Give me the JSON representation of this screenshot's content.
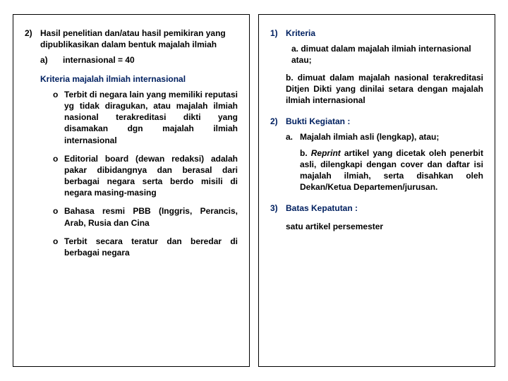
{
  "left": {
    "num": "2)",
    "title": "Hasil penelitian dan/atau hasil pemikiran yang dipublikasikan dalam bentuk majalah ilmiah",
    "sub_a_lbl": "a)",
    "sub_a_text": "internasional = 40",
    "kriteria_hd": "Kriteria majalah ilmiah internasional",
    "bul1": "Terbit di negara lain yang memiliki reputasi yg tidak diragukan, atau majalah ilmiah nasional terakreditasi dikti yang disamakan dgn majalah ilmiah internasional",
    "bul2": "Editorial board (dewan redaksi) adalah pakar dibidangnya dan berasal dari berbagai negara serta berdo misili di negara masing-masing",
    "bul3": "Bahasa resmi PBB (Inggris, Perancis, Arab, Rusia dan Cina",
    "bul4": "Terbit secara teratur dan beredar di berbagai negara",
    "circ": "o"
  },
  "right": {
    "s1_num": "1)",
    "s1_title": "Kriteria",
    "s1_a": "a. dimuat dalam majalah ilmiah internasional atau;",
    "s1_b": "b. dimuat dalam majalah nasional terakreditasi Ditjen Dikti yang dinilai setara dengan majalah ilmiah internasional",
    "s2_num": "2)",
    "s2_title": "Bukti Kegiatan :",
    "s2_a_lbl": "a.",
    "s2_a_text": "Majalah ilmiah asli (lengkap), atau;",
    "s2_b_pre": "b. ",
    "s2_b_it": "Reprint",
    "s2_b_post": " artikel yang dicetak oleh penerbit asli, dilengkapi dengan cover dan daftar isi majalah ilmiah, serta disahkan oleh Dekan/Ketua Departemen/jurusan.",
    "s3_num": "3)",
    "s3_title": "Batas Kepatutan :",
    "s3_text": "satu artikel persemester"
  }
}
